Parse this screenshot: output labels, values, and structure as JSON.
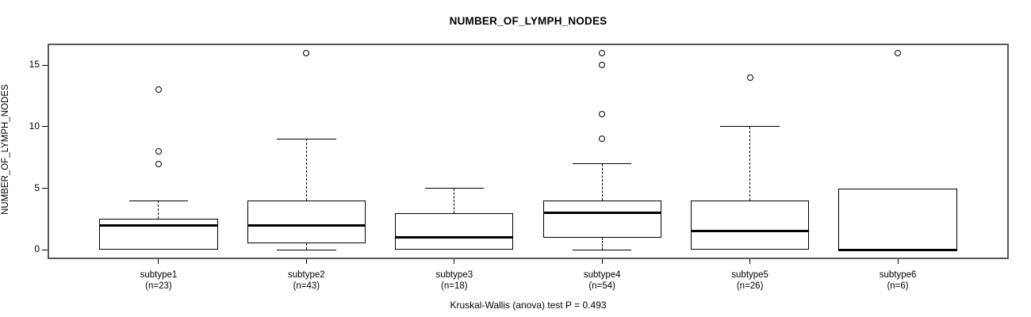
{
  "chart_data": {
    "type": "box",
    "title": "NUMBER_OF_LYMPH_NODES",
    "ylabel": "NUMBER_OF_LYMPH_NODES",
    "xlabel": "",
    "annotation": "Kruskal-Wallis (anova) test P = 0.493",
    "ylim": [
      -0.64,
      16.64
    ],
    "xlim": [
      0.26,
      6.74
    ],
    "yticks": [
      0,
      5,
      10,
      15
    ],
    "grid": false,
    "legend": "none",
    "categories": [
      "subtype1",
      "subtype2",
      "subtype3",
      "subtype4",
      "subtype5",
      "subtype6"
    ],
    "groups": [
      {
        "label": "subtype1",
        "sublabel": "(n=23)",
        "n": 23,
        "low": 0,
        "q1": 0,
        "median": 2,
        "q3": 2.5,
        "high": 4,
        "outliers": [
          7,
          8,
          13
        ]
      },
      {
        "label": "subtype2",
        "sublabel": "(n=43)",
        "n": 43,
        "low": 0,
        "q1": 0.5,
        "median": 2,
        "q3": 4,
        "high": 9,
        "outliers": [
          16
        ]
      },
      {
        "label": "subtype3",
        "sublabel": "(n=18)",
        "n": 18,
        "low": 0,
        "q1": 0,
        "median": 1,
        "q3": 3,
        "high": 5,
        "outliers": []
      },
      {
        "label": "subtype4",
        "sublabel": "(n=54)",
        "n": 54,
        "low": 0,
        "q1": 1,
        "median": 3,
        "q3": 4,
        "high": 7,
        "outliers": [
          9,
          11,
          15,
          16
        ]
      },
      {
        "label": "subtype5",
        "sublabel": "(n=26)",
        "n": 26,
        "low": 0,
        "q1": 0,
        "median": 1.5,
        "q3": 4,
        "high": 10,
        "outliers": [
          14
        ]
      },
      {
        "label": "subtype6",
        "sublabel": "(n=6)",
        "n": 6,
        "low": 0,
        "q1": 0,
        "median": 0,
        "q3": 5,
        "high": 5,
        "outliers": [
          16
        ]
      }
    ],
    "styles": {
      "line_color": "#000000",
      "frame_color": "#595959",
      "box_fill": "#ffffff",
      "background": "#ffffff"
    }
  }
}
